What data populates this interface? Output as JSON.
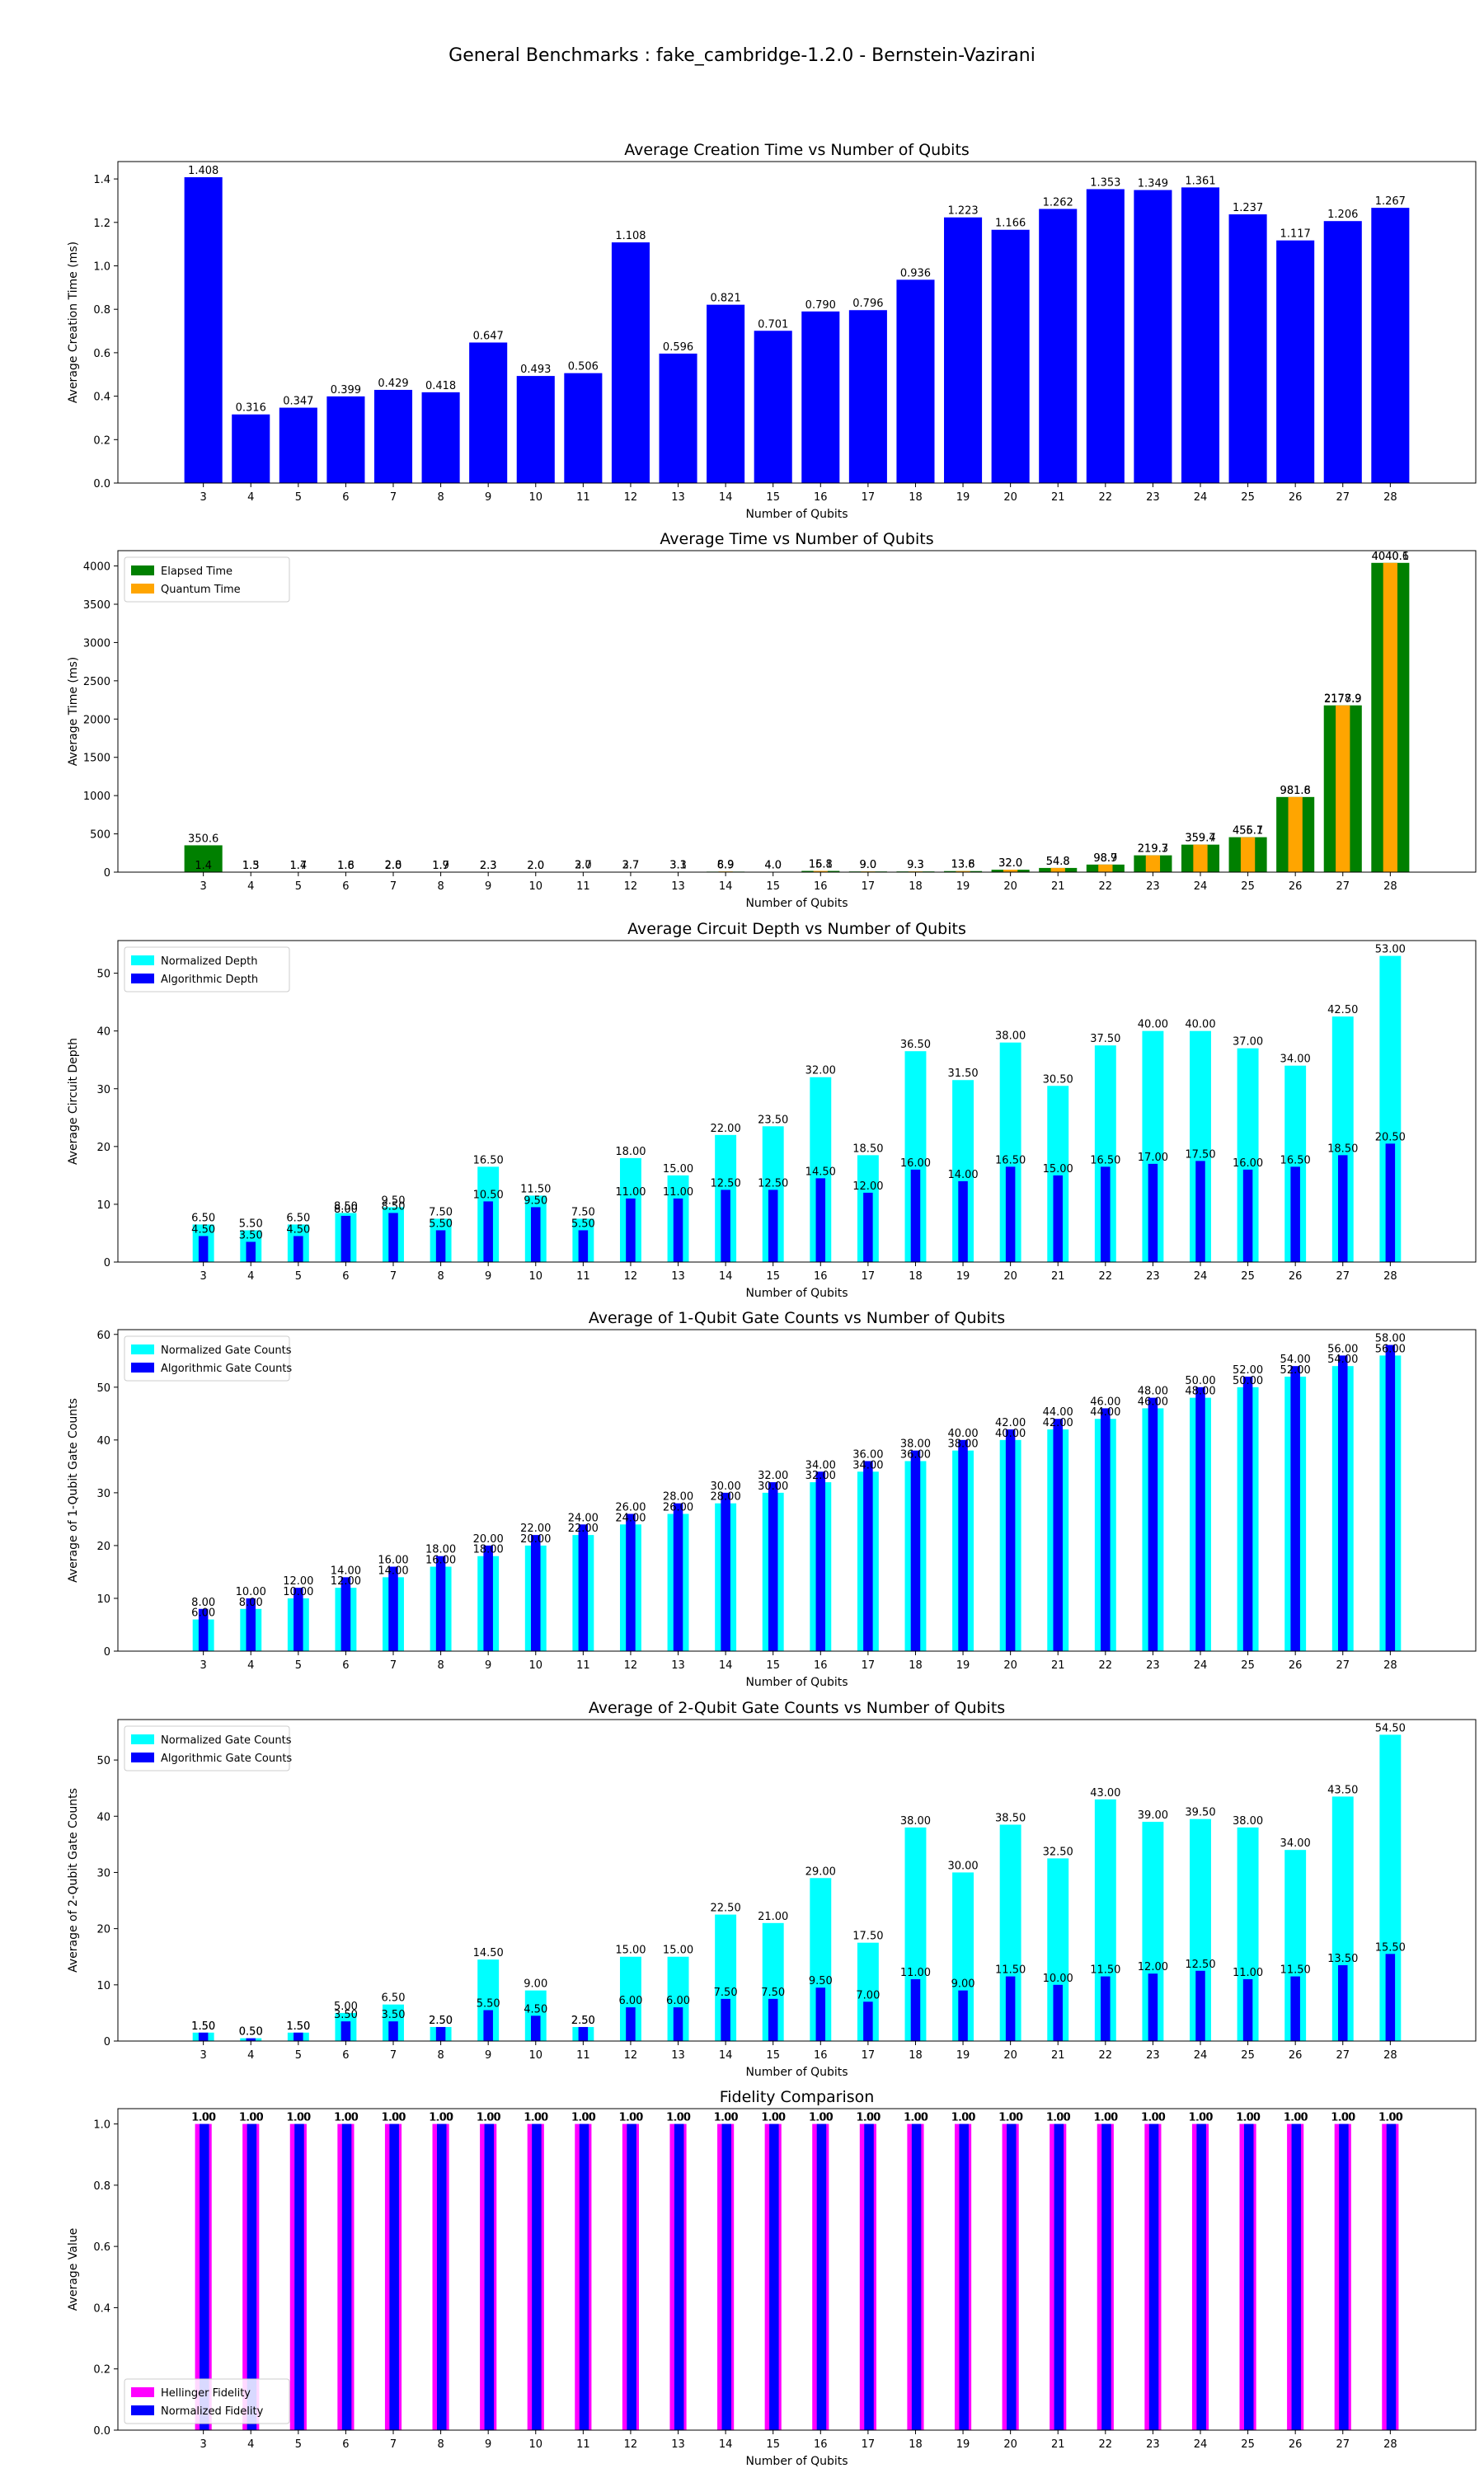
{
  "suptitle": "General Benchmarks : fake_cambridge-1.2.0 - Bernstein-Vazirani",
  "colors": {
    "blue": "#0000ff",
    "green": "#008000",
    "orange": "#ffa500",
    "cyan": "#00ffff",
    "magenta": "#ff00ff"
  },
  "chart_data": [
    {
      "type": "bar",
      "title": "Average Creation Time vs Number of Qubits",
      "xlabel": "Number of Qubits",
      "ylabel": "Average Creation Time (ms)",
      "categories": [
        "3",
        "4",
        "5",
        "6",
        "7",
        "8",
        "9",
        "10",
        "11",
        "12",
        "13",
        "14",
        "15",
        "16",
        "17",
        "18",
        "19",
        "20",
        "21",
        "22",
        "23",
        "24",
        "25",
        "26",
        "27",
        "28"
      ],
      "ylim": [
        0,
        1.48
      ],
      "yticks": [
        0.0,
        0.2,
        0.4,
        0.6,
        0.8,
        1.0,
        1.2,
        1.4
      ],
      "ytick_decimals": 1,
      "label_decimals": 3,
      "grid": false,
      "series": [
        {
          "color": "blue",
          "values": [
            1.408,
            0.316,
            0.347,
            0.399,
            0.429,
            0.418,
            0.647,
            0.493,
            0.506,
            1.108,
            0.596,
            0.821,
            0.701,
            0.79,
            0.796,
            0.936,
            1.223,
            1.166,
            1.262,
            1.353,
            1.349,
            1.361,
            1.237,
            1.117,
            1.206,
            1.267
          ]
        }
      ]
    },
    {
      "type": "bar",
      "title": "Average Time vs Number of Qubits",
      "xlabel": "Number of Qubits",
      "ylabel": "Average Time (ms)",
      "categories": [
        "3",
        "4",
        "5",
        "6",
        "7",
        "8",
        "9",
        "10",
        "11",
        "12",
        "13",
        "14",
        "15",
        "16",
        "17",
        "18",
        "19",
        "20",
        "21",
        "22",
        "23",
        "24",
        "25",
        "26",
        "27",
        "28"
      ],
      "ylim": [
        0,
        4200
      ],
      "yticks": [
        0,
        500,
        1000,
        1500,
        2000,
        2500,
        3000,
        3500,
        4000
      ],
      "ytick_decimals": 0,
      "label_decimals": 1,
      "legend": "top-left",
      "grid": false,
      "series": [
        {
          "name": "Elapsed Time",
          "color": "green",
          "width": 0.8,
          "values": [
            350.6,
            1.5,
            1.7,
            1.6,
            2.0,
            1.9,
            2.3,
            2.0,
            3.0,
            3.7,
            3.3,
            6.9,
            4.0,
            16.1,
            9.0,
            9.3,
            13.8,
            32.0,
            54.8,
            98.9,
            219.7,
            359.4,
            456.7,
            981.8,
            2178.9,
            4040.6
          ]
        },
        {
          "name": "Quantum Time",
          "color": "orange",
          "width": 0.3,
          "values": [
            1.4,
            1.3,
            1.4,
            1.8,
            2.8,
            1.7,
            2.3,
            2.0,
            2.7,
            2.7,
            3.1,
            8.9,
            4.0,
            15.8,
            9.0,
            9.3,
            13.6,
            32.0,
            54.8,
            98.7,
            219.3,
            359.7,
            455.1,
            981.6,
            2177.9,
            4040.1
          ]
        }
      ]
    },
    {
      "type": "bar",
      "title": "Average Circuit Depth vs Number of Qubits",
      "xlabel": "Number of Qubits",
      "ylabel": "Average Circuit Depth",
      "categories": [
        "3",
        "4",
        "5",
        "6",
        "7",
        "8",
        "9",
        "10",
        "11",
        "12",
        "13",
        "14",
        "15",
        "16",
        "17",
        "18",
        "19",
        "20",
        "21",
        "22",
        "23",
        "24",
        "25",
        "26",
        "27",
        "28"
      ],
      "ylim": [
        0,
        55.65
      ],
      "yticks": [
        0,
        10,
        20,
        30,
        40,
        50
      ],
      "ytick_decimals": 0,
      "label_decimals": 2,
      "legend": "top-left",
      "grid": false,
      "series": [
        {
          "name": "Normalized Depth",
          "color": "cyan",
          "width": 0.45,
          "values": [
            6.5,
            5.5,
            6.5,
            8.5,
            9.5,
            7.5,
            16.5,
            11.5,
            7.5,
            18.0,
            15.0,
            22.0,
            23.5,
            32.0,
            18.5,
            36.5,
            31.5,
            38.0,
            30.5,
            37.5,
            40.0,
            40.0,
            37.0,
            34.0,
            42.5,
            53.0
          ]
        },
        {
          "name": "Algorithmic Depth",
          "color": "blue",
          "width": 0.2,
          "values": [
            4.5,
            3.5,
            4.5,
            8.0,
            8.5,
            5.5,
            10.5,
            9.5,
            5.5,
            11.0,
            11.0,
            12.5,
            12.5,
            14.5,
            12.0,
            16.0,
            14.0,
            16.5,
            15.0,
            16.5,
            17.0,
            17.5,
            16.0,
            16.5,
            18.5,
            20.5
          ]
        }
      ]
    },
    {
      "type": "bar",
      "title": "Average of 1-Qubit Gate Counts vs Number of Qubits",
      "xlabel": "Number of Qubits",
      "ylabel": "Average of 1-Qubit Gate Counts",
      "categories": [
        "3",
        "4",
        "5",
        "6",
        "7",
        "8",
        "9",
        "10",
        "11",
        "12",
        "13",
        "14",
        "15",
        "16",
        "17",
        "18",
        "19",
        "20",
        "21",
        "22",
        "23",
        "24",
        "25",
        "26",
        "27",
        "28"
      ],
      "ylim": [
        0,
        60.9
      ],
      "yticks": [
        0,
        10,
        20,
        30,
        40,
        50,
        60
      ],
      "ytick_decimals": 0,
      "label_decimals": 2,
      "legend": "top-left",
      "grid": false,
      "series": [
        {
          "name": "Normalized Gate Counts",
          "color": "cyan",
          "width": 0.45,
          "values": [
            6.0,
            8.0,
            10.0,
            12.0,
            14.0,
            16.0,
            18.0,
            20.0,
            22.0,
            24.0,
            26.0,
            28.0,
            30.0,
            32.0,
            34.0,
            36.0,
            38.0,
            40.0,
            42.0,
            44.0,
            46.0,
            48.0,
            50.0,
            52.0,
            54.0,
            56.0
          ]
        },
        {
          "name": "Algorithmic Gate Counts",
          "color": "blue",
          "width": 0.2,
          "values": [
            8.0,
            10.0,
            12.0,
            14.0,
            16.0,
            18.0,
            20.0,
            22.0,
            24.0,
            26.0,
            28.0,
            30.0,
            32.0,
            34.0,
            36.0,
            38.0,
            40.0,
            42.0,
            44.0,
            46.0,
            48.0,
            50.0,
            52.0,
            54.0,
            56.0,
            58.0
          ]
        }
      ]
    },
    {
      "type": "bar",
      "title": "Average of 2-Qubit Gate Counts vs Number of Qubits",
      "xlabel": "Number of Qubits",
      "ylabel": "Average of 2-Qubit Gate Counts",
      "categories": [
        "3",
        "4",
        "5",
        "6",
        "7",
        "8",
        "9",
        "10",
        "11",
        "12",
        "13",
        "14",
        "15",
        "16",
        "17",
        "18",
        "19",
        "20",
        "21",
        "22",
        "23",
        "24",
        "25",
        "26",
        "27",
        "28"
      ],
      "ylim": [
        0,
        57.2
      ],
      "yticks": [
        0,
        10,
        20,
        30,
        40,
        50
      ],
      "ytick_decimals": 0,
      "label_decimals": 2,
      "legend": "top-left",
      "grid": false,
      "series": [
        {
          "name": "Normalized Gate Counts",
          "color": "cyan",
          "width": 0.45,
          "values": [
            1.5,
            0.5,
            1.5,
            5.0,
            6.5,
            2.5,
            14.5,
            9.0,
            2.5,
            15.0,
            15.0,
            22.5,
            21.0,
            29.0,
            17.5,
            38.0,
            30.0,
            38.5,
            32.5,
            43.0,
            39.0,
            39.5,
            38.0,
            34.0,
            43.5,
            54.5
          ]
        },
        {
          "name": "Algorithmic Gate Counts",
          "color": "blue",
          "width": 0.2,
          "values": [
            1.5,
            0.5,
            1.5,
            3.5,
            3.5,
            2.5,
            5.5,
            4.5,
            2.5,
            6.0,
            6.0,
            7.5,
            7.5,
            9.5,
            7.0,
            11.0,
            9.0,
            11.5,
            10.0,
            11.5,
            12.0,
            12.5,
            11.0,
            11.5,
            13.5,
            15.5
          ]
        }
      ]
    },
    {
      "type": "bar",
      "title": "Fidelity Comparison",
      "xlabel": "Number of Qubits",
      "ylabel": "Average Value",
      "categories": [
        "3",
        "4",
        "5",
        "6",
        "7",
        "8",
        "9",
        "10",
        "11",
        "12",
        "13",
        "14",
        "15",
        "16",
        "17",
        "18",
        "19",
        "20",
        "21",
        "22",
        "23",
        "24",
        "25",
        "26",
        "27",
        "28"
      ],
      "ylim": [
        0,
        1.05
      ],
      "yticks": [
        0.0,
        0.2,
        0.4,
        0.6,
        0.8,
        1.0
      ],
      "ytick_decimals": 1,
      "label_decimals": 2,
      "legend": "bottom-left",
      "grid": false,
      "series": [
        {
          "name": "Hellinger Fidelity",
          "color": "magenta",
          "width": 0.35,
          "offset": 0,
          "values": [
            1.0,
            1.0,
            1.0,
            1.0,
            1.0,
            1.0,
            1.0,
            1.0,
            1.0,
            1.0,
            1.0,
            1.0,
            1.0,
            1.0,
            1.0,
            1.0,
            1.0,
            1.0,
            1.0,
            1.0,
            1.0,
            1.0,
            1.0,
            1.0,
            1.0,
            1.0
          ]
        },
        {
          "name": "Normalized Fidelity",
          "color": "blue",
          "width": 0.2,
          "offset": 0.02,
          "values": [
            1.0,
            1.0,
            1.0,
            1.0,
            1.0,
            1.0,
            1.0,
            1.0,
            1.0,
            1.0,
            1.0,
            1.0,
            1.0,
            1.0,
            1.0,
            1.0,
            1.0,
            1.0,
            1.0,
            1.0,
            1.0,
            1.0,
            1.0,
            1.0,
            1.0,
            1.0
          ]
        }
      ]
    }
  ]
}
